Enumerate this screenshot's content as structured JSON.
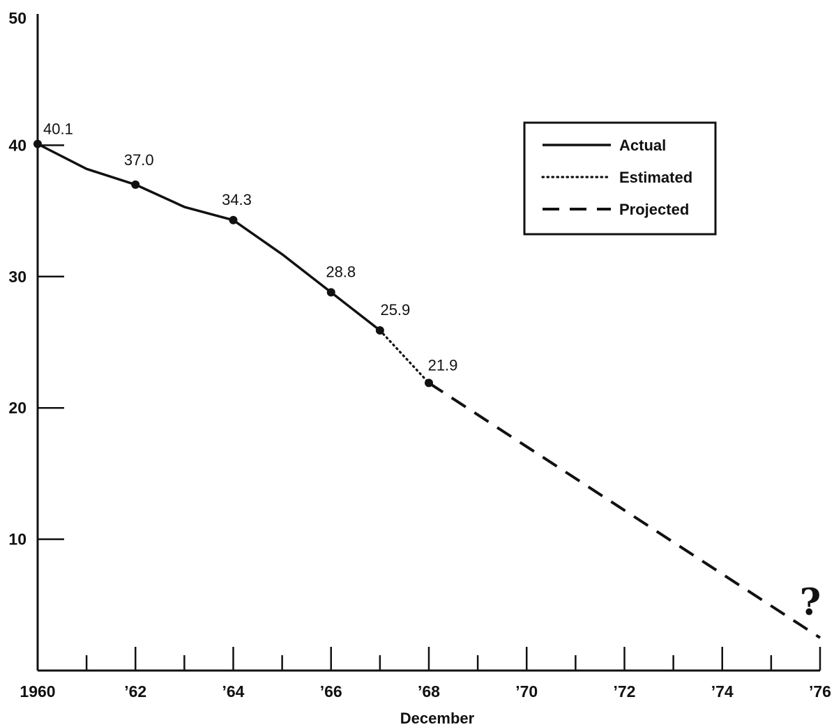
{
  "chart_data": {
    "type": "line",
    "title": "",
    "xlabel": "December",
    "ylabel": "",
    "xlim": [
      1960,
      1976
    ],
    "ylim": [
      0,
      50
    ],
    "x_ticks": [
      1960,
      1961,
      1962,
      1963,
      1964,
      1965,
      1966,
      1967,
      1968,
      1969,
      1970,
      1971,
      1972,
      1973,
      1974,
      1975,
      1976
    ],
    "x_tick_labels": [
      {
        "x": 1960,
        "label": "1960"
      },
      {
        "x": 1962,
        "label": "’62"
      },
      {
        "x": 1964,
        "label": "’64"
      },
      {
        "x": 1966,
        "label": "’66"
      },
      {
        "x": 1968,
        "label": "’68"
      },
      {
        "x": 1970,
        "label": "’70"
      },
      {
        "x": 1972,
        "label": "’72"
      },
      {
        "x": 1974,
        "label": "’74"
      },
      {
        "x": 1976,
        "label": "’76"
      }
    ],
    "y_ticks": [
      10,
      20,
      30,
      40,
      50
    ],
    "y_tick_labels": [
      "10",
      "20",
      "30",
      "40",
      "50"
    ],
    "grid": false,
    "legend_position": "top-right",
    "series": [
      {
        "name": "Actual",
        "style": "solid",
        "points": [
          [
            1960,
            40.1
          ],
          [
            1961,
            38.2
          ],
          [
            1962,
            37.0
          ],
          [
            1963,
            35.3
          ],
          [
            1964,
            34.3
          ],
          [
            1965,
            31.7
          ],
          [
            1966,
            28.8
          ],
          [
            1967,
            25.9
          ]
        ]
      },
      {
        "name": "Estimated",
        "style": "dotted",
        "points": [
          [
            1967,
            25.9
          ],
          [
            1968,
            21.9
          ]
        ]
      },
      {
        "name": "Projected",
        "style": "dashed",
        "points": [
          [
            1968,
            21.9
          ],
          [
            1976,
            2.5
          ]
        ]
      }
    ],
    "markers": [
      {
        "x": 1960,
        "y": 40.1,
        "label": "40.1"
      },
      {
        "x": 1962,
        "y": 37.0,
        "label": "37.0"
      },
      {
        "x": 1964,
        "y": 34.3,
        "label": "34.3"
      },
      {
        "x": 1966,
        "y": 28.8,
        "label": "28.8"
      },
      {
        "x": 1967,
        "y": 25.9,
        "label": "25.9"
      },
      {
        "x": 1968,
        "y": 21.9,
        "label": "21.9"
      }
    ],
    "annotations": [
      {
        "x": 1976,
        "y": 5.2,
        "text": "?"
      }
    ],
    "colors": {
      "line": "#111111",
      "background": "#ffffff"
    }
  }
}
